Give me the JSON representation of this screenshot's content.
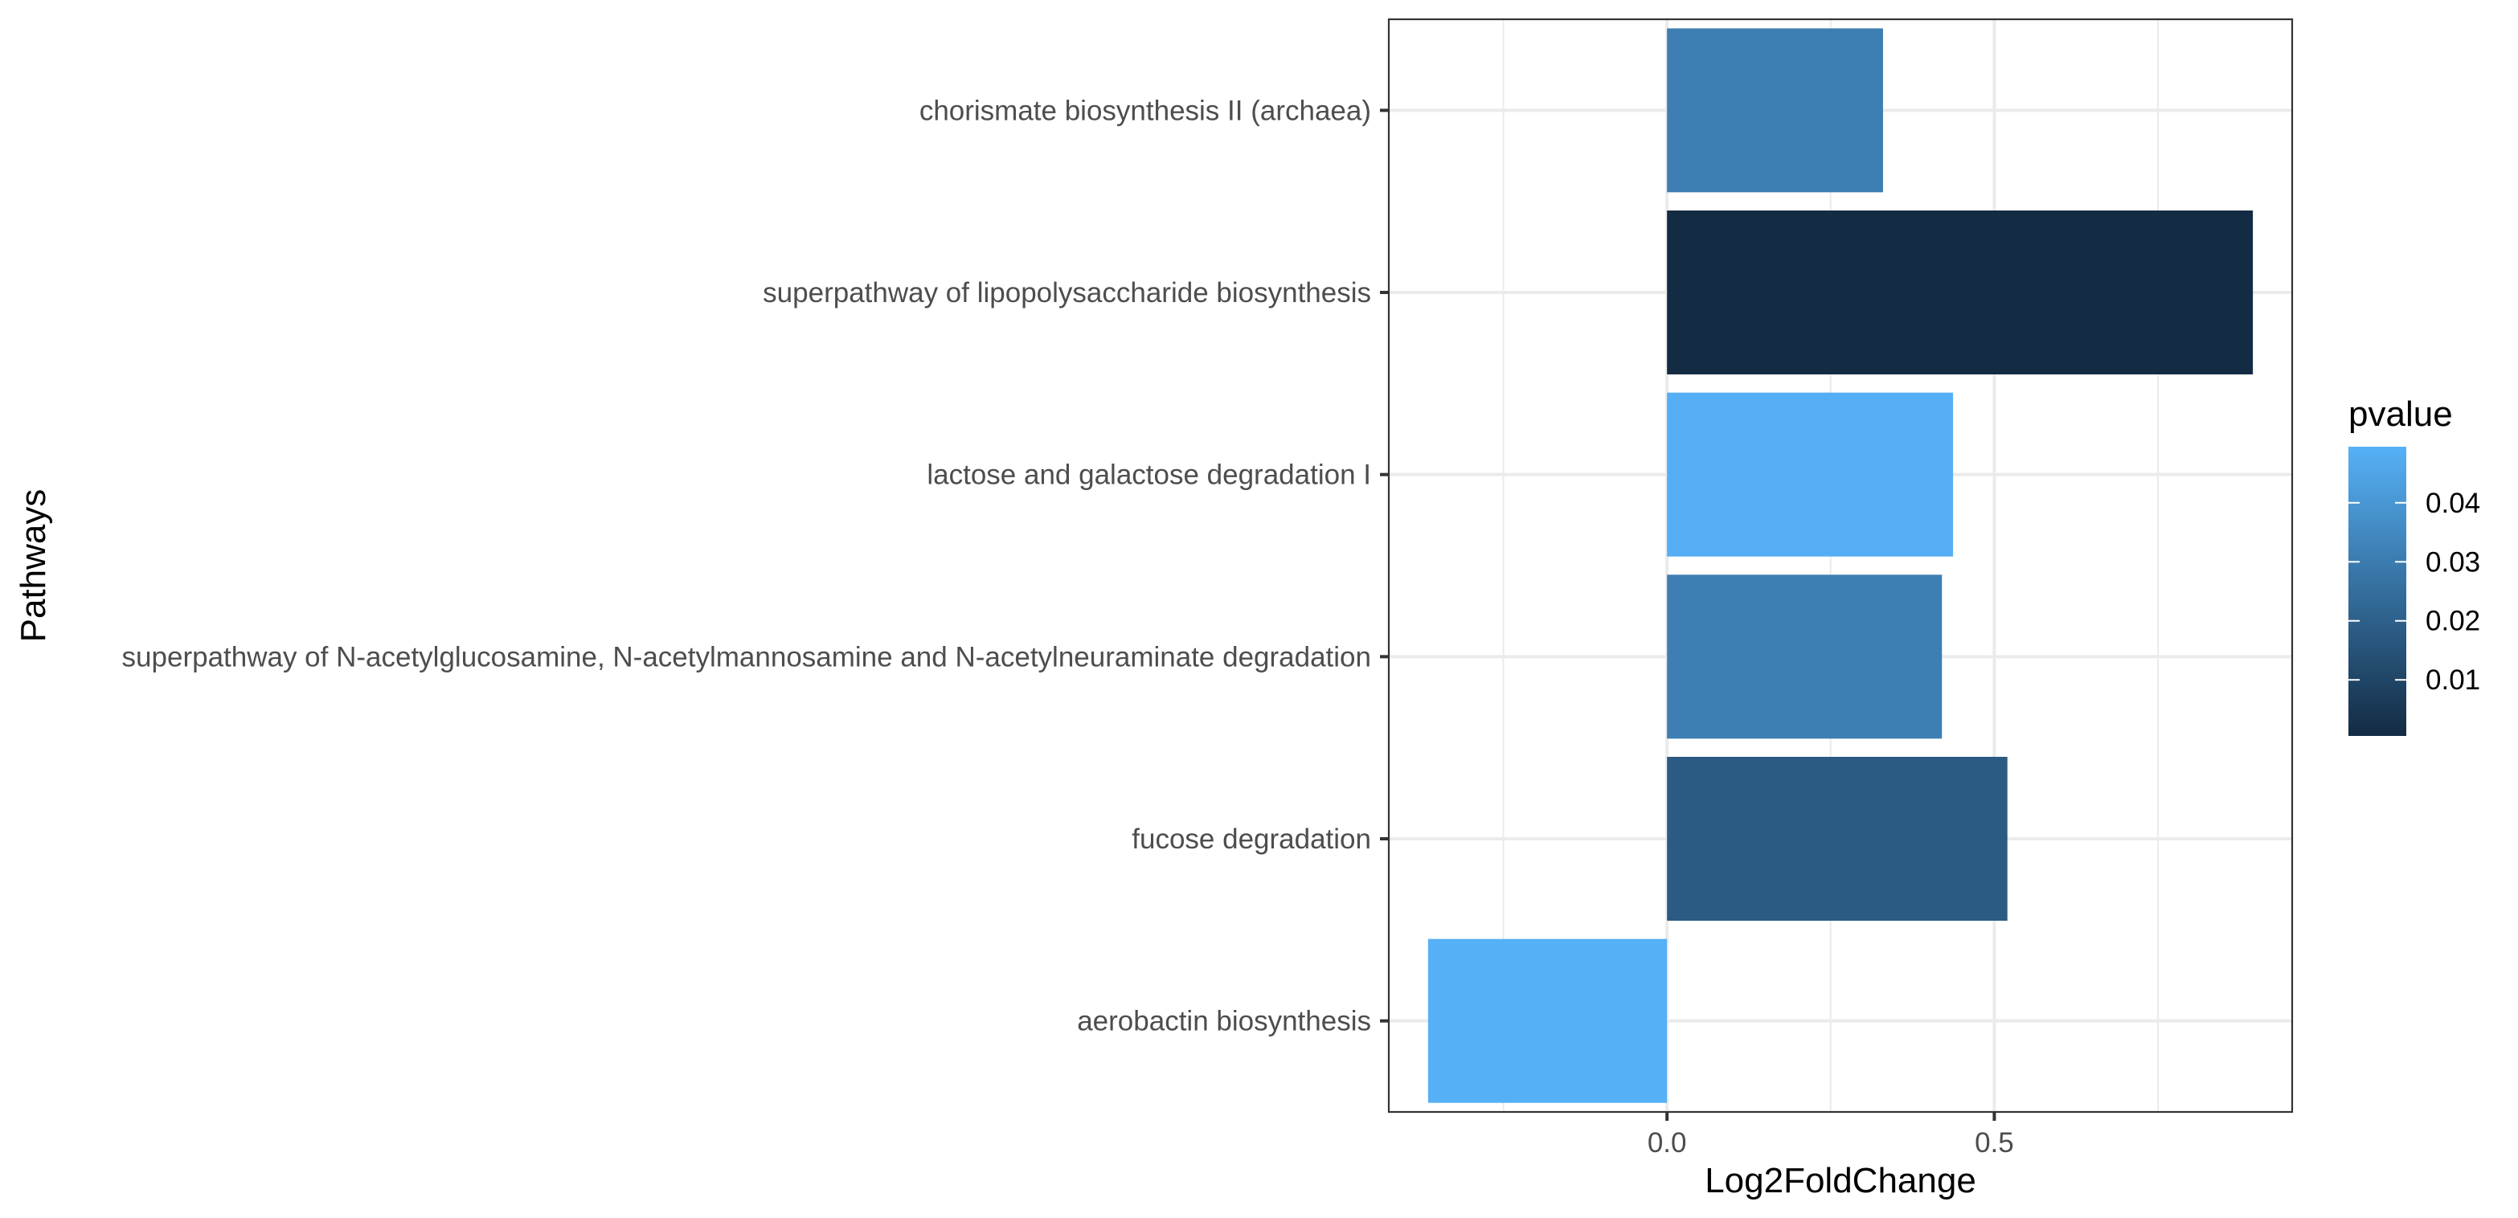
{
  "chart_data": {
    "type": "bar",
    "orientation": "horizontal",
    "categories": [
      "chorismate biosynthesis II (archaea)",
      "superpathway of lipopolysaccharide biosynthesis",
      "lactose and galactose degradation I",
      "superpathway of N-acetylglucosamine, N-acetylmannosamine and N-acetylneuraminate degradation",
      "fucose degradation",
      "aerobactin biosynthesis"
    ],
    "values": [
      0.33,
      0.895,
      0.437,
      0.42,
      0.52,
      -0.365
    ],
    "pvalue": [
      0.031,
      0.0005,
      0.0485,
      0.031,
      0.018,
      0.049
    ],
    "xlabel": "Log2FoldChange",
    "ylabel": "Pathways",
    "xlim": [
      -0.425,
      0.955
    ],
    "x_ticks": [
      0.0,
      0.5
    ],
    "x_tick_labels": [
      "0.0",
      "0.5"
    ],
    "x_minor_ticks": [
      -0.25,
      0.25,
      0.75
    ],
    "grid": true,
    "legend": {
      "title": "pvalue",
      "placement": "right",
      "type": "colorbar",
      "range": [
        0.0005,
        0.0495
      ],
      "ticks": [
        0.01,
        0.02,
        0.03,
        0.04
      ],
      "tick_labels": [
        "0.01",
        "0.02",
        "0.03",
        "0.04"
      ],
      "color_low": "#132B43",
      "color_high": "#56B1F7"
    },
    "colors": {
      "gridline": "#ebebeb",
      "panel_border": "#333333",
      "tick_text": "#4d4d4d"
    }
  }
}
